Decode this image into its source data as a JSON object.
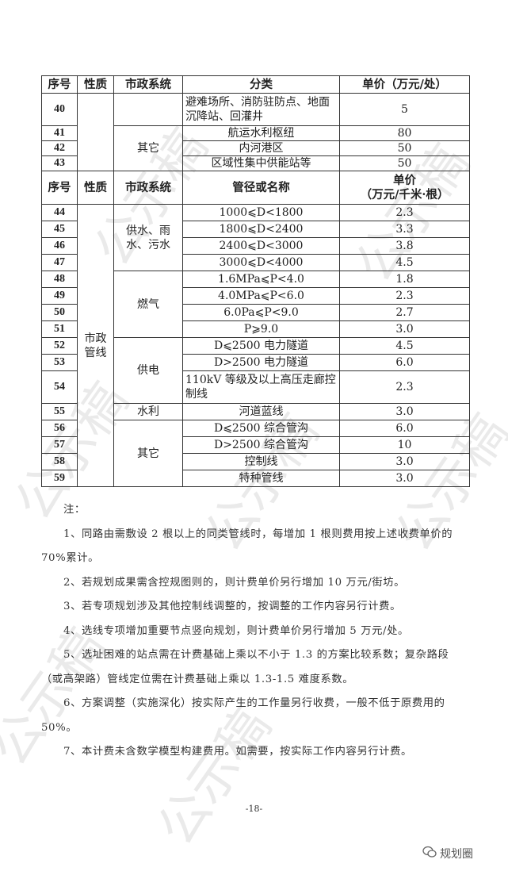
{
  "table": {
    "header1": [
      "序号",
      "性质",
      "市政系统",
      "分类",
      "单价（万元/处）"
    ],
    "rows1": [
      {
        "seq": "40",
        "desc": "避难场所、消防驻防点、地面沉降站、回灌井",
        "price": "5"
      },
      {
        "seq": "41",
        "desc": "航运水利枢纽",
        "price": "80"
      },
      {
        "seq": "42",
        "desc": "内河港区",
        "price": "50"
      },
      {
        "seq": "43",
        "desc": "区域性集中供能站等",
        "price": "50"
      }
    ],
    "group_other1": "其它",
    "header2": [
      "序号",
      "性质",
      "市政系统",
      "管径或名称",
      "单价",
      "（万元/千米·根）"
    ],
    "nature2": "市政管线",
    "systems": {
      "water": "供水、雨水、污水",
      "gas": "燃气",
      "power": "供电",
      "hydro": "水利",
      "other": "其它"
    },
    "rows2": [
      {
        "seq": "44",
        "desc": "1000⩽D<1800",
        "price": "2.3"
      },
      {
        "seq": "45",
        "desc": "1800⩽D<2400",
        "price": "3.3"
      },
      {
        "seq": "46",
        "desc": "2400⩽D<3000",
        "price": "3.8"
      },
      {
        "seq": "47",
        "desc": "3000⩽D<4000",
        "price": "4.5"
      },
      {
        "seq": "48",
        "desc": "1.6MPa⩽P<4.0",
        "price": "1.8"
      },
      {
        "seq": "49",
        "desc": "4.0MPa⩽P<6.0",
        "price": "2.3"
      },
      {
        "seq": "50",
        "desc": "6.0Pa⩽P<9.0",
        "price": "2.7"
      },
      {
        "seq": "51",
        "desc": "P⩾9.0",
        "price": "3.0"
      },
      {
        "seq": "52",
        "desc": "D⩽2500 电力隧道",
        "price": "4.5"
      },
      {
        "seq": "53",
        "desc": "D>2500 电力隧道",
        "price": "6.0"
      },
      {
        "seq": "54",
        "desc": "110kV 等级及以上高压走廊控制线",
        "price": "2.3"
      },
      {
        "seq": "55",
        "desc": "河道蓝线",
        "price": "3.0"
      },
      {
        "seq": "56",
        "desc": "D⩽2500 综合管沟",
        "price": "6.0"
      },
      {
        "seq": "57",
        "desc": "D>2500 综合管沟",
        "price": "10"
      },
      {
        "seq": "58",
        "desc": "控制线",
        "price": "3.0"
      },
      {
        "seq": "59",
        "desc": "特种管线",
        "price": "3.0"
      }
    ]
  },
  "notes": {
    "title": "注：",
    "items": [
      "1、同路由需敷设 2 根以上的同类管线时，每增加 1 根则费用按上述收费单价的 70%累计。",
      "2、若规划成果需含控规图则的，则计费单价另行增加 10 万元/街坊。",
      "3、若专项规划涉及其他控制线调整的，按调整的工作内容另行计费。",
      "4、选线专项增加重要节点竖向规划，则计费单价另行增加 5 万元/处。",
      "5、选址困难的站点需在计费基础上乘以不小于 1.3 的方案比较系数；复杂路段（或高架路）管线定位需在计费基础上乘以 1.3-1.5 难度系数。",
      "6、方案调整（实施深化）按实际产生的工作量另行收费，一般不低于原费用的 50%。",
      "7、本计费未含数学模型构建费用。如需要，按实际工作内容另行计费。"
    ]
  },
  "page_number": "-18-",
  "watermark": "公示稿",
  "brand": {
    "label": "规划圈",
    "icon": "wechat-icon"
  }
}
